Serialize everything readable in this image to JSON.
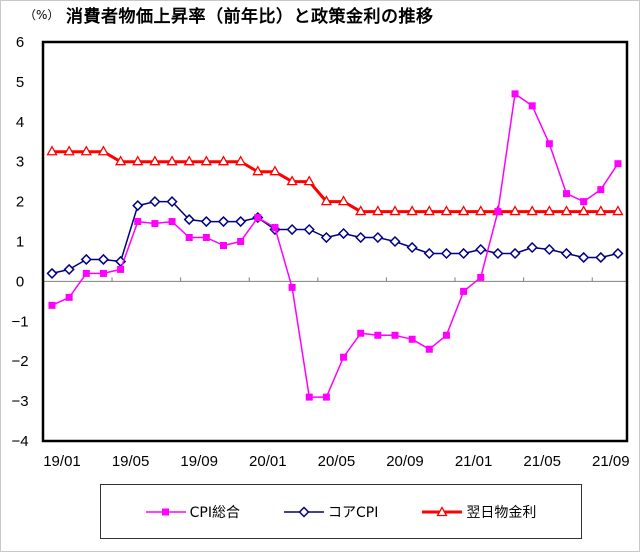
{
  "header": {
    "unit": "（%）",
    "title": "消費者物価上昇率（前年比）と政策金利の推移"
  },
  "colors": {
    "cpi_total": "#ff00ff",
    "core_cpi": "#000080",
    "overnight_rate": "#ff0000",
    "axis": "#000000",
    "zero_line": "#808080"
  },
  "legend": {
    "items": [
      {
        "label": "CPI総合",
        "marker": "square",
        "color": "#ff00ff"
      },
      {
        "label": "コアCPI",
        "marker": "diamond",
        "color": "#000080"
      },
      {
        "label": "翌日物金利",
        "marker": "triangle",
        "color": "#ff0000"
      }
    ]
  },
  "chart_data": {
    "type": "line",
    "title": "消費者物価上昇率（前年比）と政策金利の推移",
    "ylabel": "（%）",
    "xlabel": "",
    "ylim": [
      -4,
      6
    ],
    "yticks": [
      6,
      5,
      4,
      3,
      2,
      1,
      0,
      -1,
      -2,
      -3,
      -4
    ],
    "xtick_labels": [
      "19/01",
      "19/05",
      "19/09",
      "20/01",
      "20/05",
      "20/09",
      "21/01",
      "21/05",
      "21/09"
    ],
    "grid": false,
    "legend_position": "bottom",
    "x": [
      "19/01",
      "19/02",
      "19/03",
      "19/04",
      "19/05",
      "19/06",
      "19/07",
      "19/08",
      "19/09",
      "19/10",
      "19/11",
      "19/12",
      "20/01",
      "20/02",
      "20/03",
      "20/04",
      "20/05",
      "20/06",
      "20/07",
      "20/08",
      "20/09",
      "20/10",
      "20/11",
      "20/12",
      "21/01",
      "21/02",
      "21/03",
      "21/04",
      "21/05",
      "21/06",
      "21/07",
      "21/08",
      "21/09",
      "21/10"
    ],
    "series": [
      {
        "name": "CPI総合",
        "marker": "square",
        "values": [
          -0.6,
          -0.4,
          0.2,
          0.2,
          0.3,
          1.5,
          1.45,
          1.5,
          1.1,
          1.1,
          0.9,
          1.0,
          1.6,
          1.35,
          -0.15,
          -2.9,
          -2.9,
          -1.9,
          -1.3,
          -1.35,
          -1.35,
          -1.45,
          -1.7,
          -1.35,
          -0.25,
          0.1,
          1.75,
          4.7,
          4.4,
          3.45,
          2.2,
          2.0,
          2.3,
          2.95
        ]
      },
      {
        "name": "コアCPI",
        "marker": "diamond",
        "values": [
          0.2,
          0.3,
          0.55,
          0.55,
          0.5,
          1.9,
          2.0,
          2.0,
          1.55,
          1.5,
          1.5,
          1.5,
          1.6,
          1.3,
          1.3,
          1.3,
          1.1,
          1.2,
          1.1,
          1.1,
          1.0,
          0.85,
          0.7,
          0.7,
          0.7,
          0.8,
          0.7,
          0.7,
          0.85,
          0.8,
          0.7,
          0.6,
          0.6,
          0.7
        ]
      },
      {
        "name": "翌日物金利",
        "marker": "triangle",
        "values": [
          3.25,
          3.25,
          3.25,
          3.25,
          3.0,
          3.0,
          3.0,
          3.0,
          3.0,
          3.0,
          3.0,
          3.0,
          2.75,
          2.75,
          2.5,
          2.5,
          2.0,
          2.0,
          1.75,
          1.75,
          1.75,
          1.75,
          1.75,
          1.75,
          1.75,
          1.75,
          1.75,
          1.75,
          1.75,
          1.75,
          1.75,
          1.75,
          1.75,
          1.75
        ]
      }
    ]
  }
}
